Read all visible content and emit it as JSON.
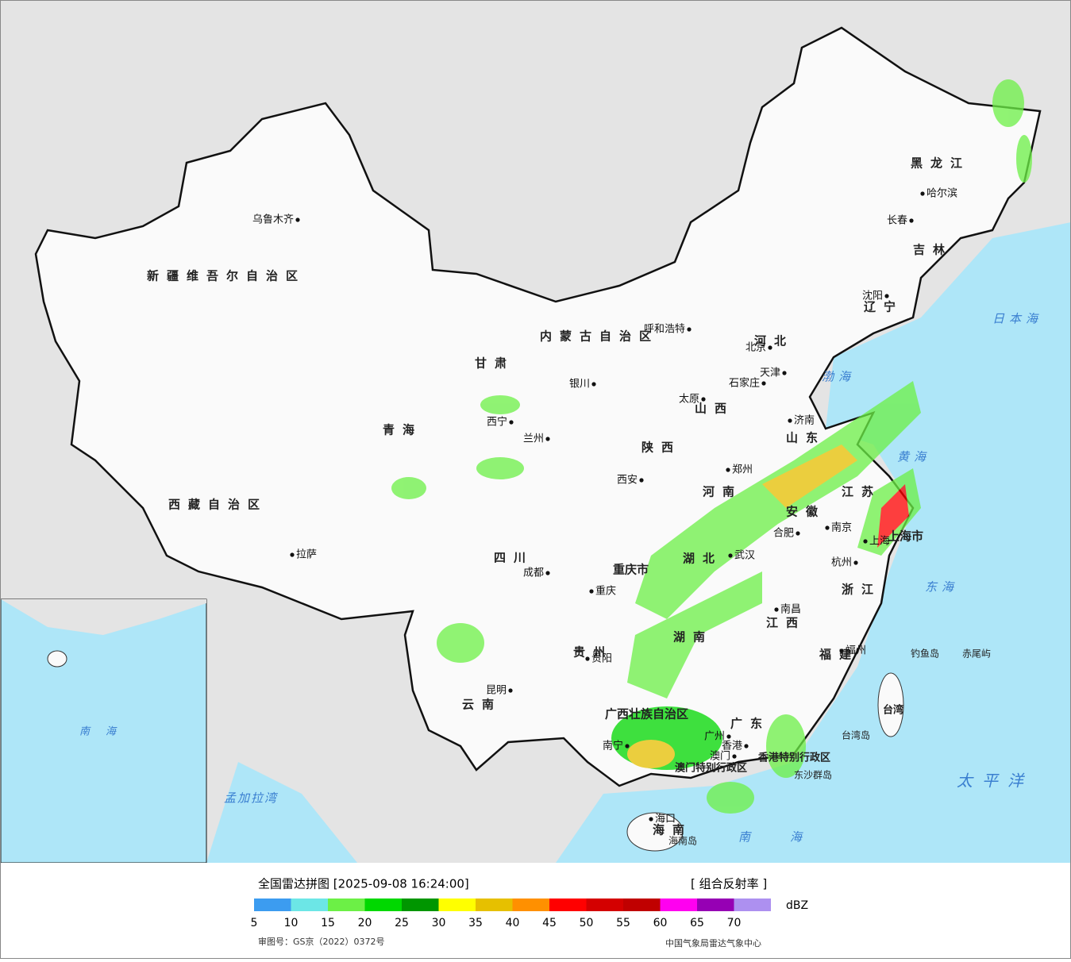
{
  "map": {
    "provinces": [
      "新疆维吾尔自治区",
      "西藏自治区",
      "青海",
      "甘肃",
      "内蒙古自治区",
      "黑龙江",
      "吉林",
      "辽宁",
      "河北",
      "山西",
      "陕西",
      "河南",
      "山东",
      "江苏",
      "安徽",
      "湖北",
      "四川",
      "重庆市",
      "贵州",
      "云南",
      "湖南",
      "江西",
      "浙江",
      "福建",
      "广西壮族自治区",
      "广东",
      "海南",
      "台湾",
      "上海市",
      "香港特别行政区",
      "澳门特别行政区"
    ],
    "cities": [
      "乌鲁木齐",
      "拉萨",
      "西宁",
      "兰州",
      "银川",
      "呼和浩特",
      "北京",
      "天津",
      "石家庄",
      "太原",
      "济南",
      "郑州",
      "西安",
      "成都",
      "重庆",
      "武汉",
      "合肥",
      "南京",
      "上海",
      "杭州",
      "南昌",
      "福州",
      "贵阳",
      "昆明",
      "南宁",
      "广州",
      "香港",
      "澳门",
      "海口",
      "沈阳",
      "长春",
      "哈尔滨"
    ],
    "seas": [
      "日本海",
      "渤海",
      "黄海",
      "东海",
      "太平洋",
      "南海",
      "孟加拉湾",
      "南海"
    ],
    "islands": [
      "钓鱼岛",
      "赤尾屿",
      "台湾岛",
      "海南岛",
      "东沙群岛"
    ]
  },
  "legend": {
    "title": "全国雷达拼图 [2025-09-08 16:24:00]",
    "product": "[ 组合反射率 ]",
    "unit": "dBZ",
    "colors": [
      "#3c9cf0",
      "#6ce6e6",
      "#6cf046",
      "#00d800",
      "#009600",
      "#ffff00",
      "#e6c000",
      "#ff9000",
      "#ff0000",
      "#d40000",
      "#c00000",
      "#ff00f0",
      "#9600b4",
      "#ad90f0"
    ],
    "ticks": [
      5,
      10,
      15,
      20,
      25,
      30,
      35,
      40,
      45,
      50,
      55,
      60,
      65,
      70
    ]
  },
  "footer": {
    "approval": "审图号：GS京（2022）0372号",
    "source": "中国气象局雷达气象中心"
  }
}
